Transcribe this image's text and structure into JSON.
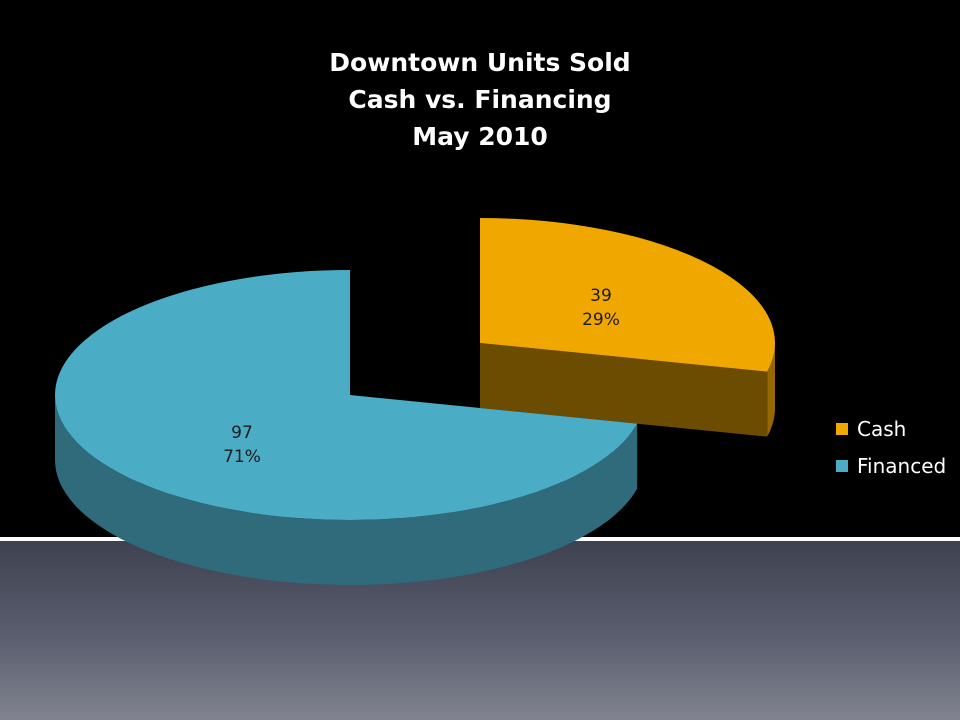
{
  "chart_data": {
    "type": "pie",
    "title": [
      "Downtown Units Sold",
      "Cash vs. Financing",
      "May 2010"
    ],
    "slices": [
      {
        "name": "Cash",
        "value": 39,
        "percent": "29%",
        "color": "#f0a800"
      },
      {
        "name": "Financed",
        "value": 97,
        "percent": "71%",
        "color": "#4bacc6"
      }
    ],
    "legend_position": "right"
  }
}
